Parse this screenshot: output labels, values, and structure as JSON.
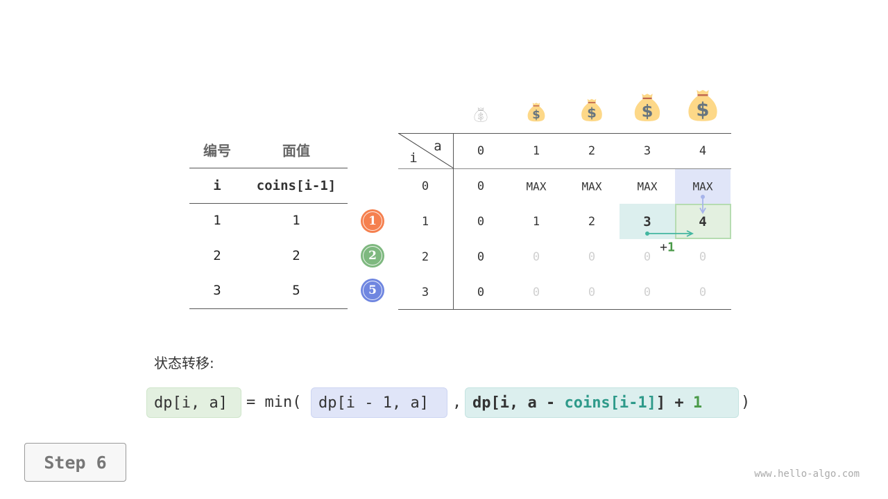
{
  "coin_table": {
    "headers": [
      "编号",
      "面值"
    ],
    "subheaders": [
      "i",
      "coins[i-1]"
    ],
    "rows": [
      [
        "1",
        "1"
      ],
      [
        "2",
        "2"
      ],
      [
        "3",
        "5"
      ]
    ]
  },
  "coin_badges": [
    {
      "label": "1",
      "color": "#f5804f"
    },
    {
      "label": "2",
      "color": "#7eb87f"
    },
    {
      "label": "5",
      "color": "#6f86e0"
    }
  ],
  "bag_icons": [
    "money-bag-outline-icon",
    "money-bag-icon",
    "money-bag-icon",
    "money-bag-icon",
    "money-bag-icon"
  ],
  "dp_table": {
    "corner_col_label": "a",
    "corner_row_label": "i",
    "col_headers": [
      "0",
      "1",
      "2",
      "3",
      "4"
    ],
    "row_headers": [
      "0",
      "1",
      "2",
      "3"
    ],
    "cells": [
      [
        "0",
        "MAX",
        "MAX",
        "MAX",
        "MAX"
      ],
      [
        "0",
        "1",
        "2",
        "3",
        "4"
      ],
      [
        "0",
        "0",
        "0",
        "0",
        "0"
      ],
      [
        "0",
        "0",
        "0",
        "0",
        "0"
      ]
    ],
    "computed": [
      [
        true,
        true,
        true,
        true,
        true
      ],
      [
        true,
        true,
        true,
        true,
        true
      ],
      [
        true,
        false,
        false,
        false,
        false
      ],
      [
        true,
        false,
        false,
        false,
        false
      ]
    ],
    "current_cell": {
      "row": 1,
      "col": 4
    },
    "top_source_cell": {
      "row": 0,
      "col": 4
    },
    "left_source_cell": {
      "row": 1,
      "col": 3
    },
    "increment_label_plus": "+",
    "increment_label_num": "1"
  },
  "colors": {
    "green_bg": "#e3f0e0",
    "green_border": "#b6dcb1",
    "blue_bg": "#e0e5f8",
    "teal_bg": "#dcefee",
    "teal_text": "#2e9a8a",
    "green_text": "#4a9a48",
    "blue_arrow": "#a7b4ea",
    "teal_arrow": "#43b6a0"
  },
  "transition": {
    "label": "状态转移:",
    "lhs": "dp[i, a]",
    "eq": "= min(",
    "arg1": "dp[i - 1, a]",
    "comma": ",",
    "arg2_a": "dp[i, a - ",
    "arg2_b": "coins[i-1]",
    "arg2_c": "] + ",
    "arg2_d": "1",
    "close": ")"
  },
  "step_label": "Step 6",
  "watermark": "www.hello-algo.com"
}
